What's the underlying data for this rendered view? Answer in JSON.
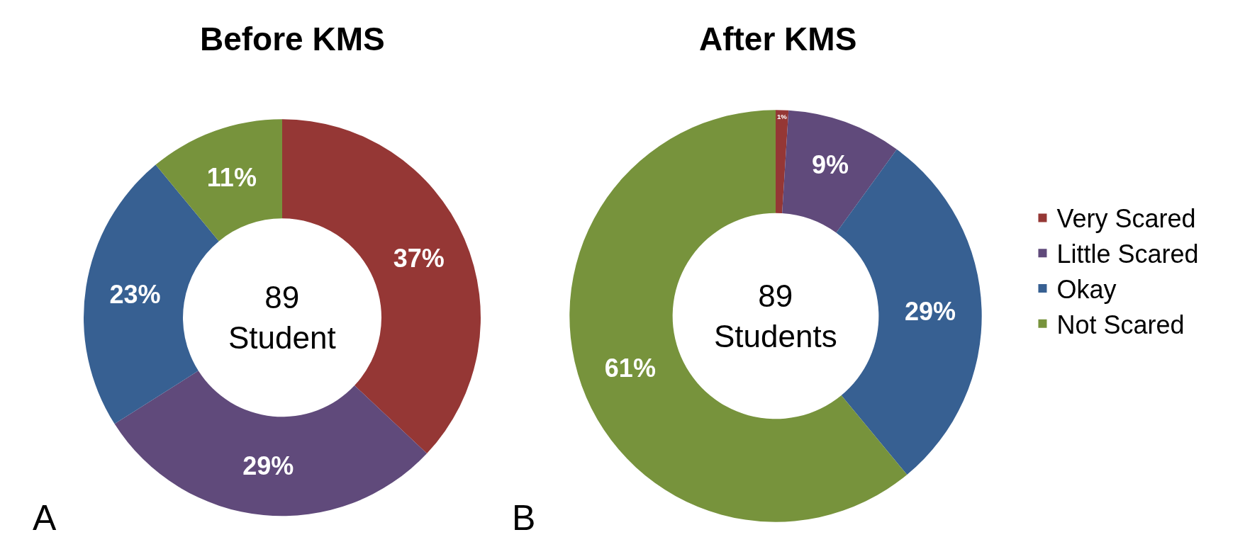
{
  "chart_data": {
    "type": "donut",
    "categories": [
      "Very Scared",
      "Little Scared",
      "Okay",
      "Not Scared"
    ],
    "colors": [
      "#953735",
      "#604a7b",
      "#376092",
      "#77933c"
    ],
    "series": [
      {
        "name": "Before KMS",
        "values": [
          37,
          29,
          23,
          11
        ],
        "value_labels": [
          "37%",
          "29%",
          "23%",
          "11%"
        ]
      },
      {
        "name": "After KMS",
        "values": [
          1,
          9,
          29,
          61
        ],
        "value_labels": [
          "1%",
          "9%",
          "29%",
          "61%"
        ]
      }
    ],
    "annotations": [
      "89\nStudent",
      "A",
      "89\nStudents",
      "B"
    ],
    "legend": "right"
  }
}
